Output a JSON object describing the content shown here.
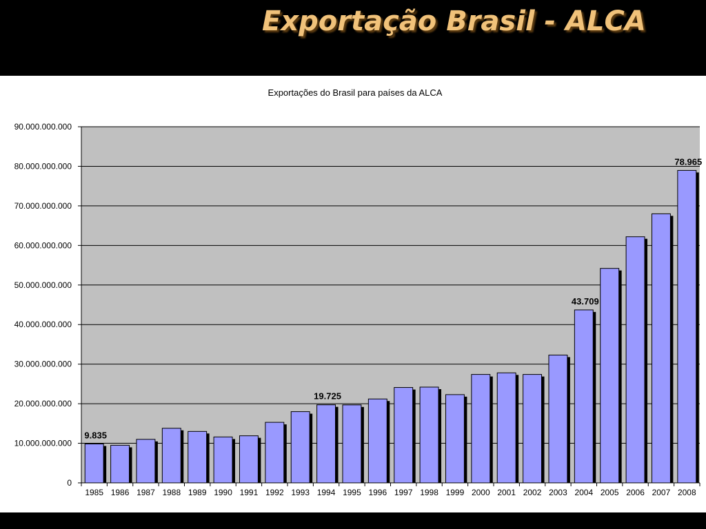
{
  "slide": {
    "title": "Exportação Brasil - ALCA"
  },
  "colors": {
    "background": "#000000",
    "title_text": "#f1c27a",
    "plot_area": "#c0c0c0",
    "bar_fill": "#9999ff",
    "bar_shadow": "#000000"
  },
  "chart_data": {
    "type": "bar",
    "title": "Exportações do Brasil para países da ALCA",
    "xlabel": "",
    "ylabel": "",
    "ylim": [
      0,
      90000000000
    ],
    "y_ticks": [
      0,
      10000000000,
      20000000000,
      30000000000,
      40000000000,
      50000000000,
      60000000000,
      70000000000,
      80000000000,
      90000000000
    ],
    "y_tick_labels": [
      "0",
      "10.000.000.000",
      "20.000.000.000",
      "30.000.000.000",
      "40.000.000.000",
      "50.000.000.000",
      "60.000.000.000",
      "70.000.000.000",
      "80.000.000.000",
      "90.000.000.000"
    ],
    "grid": true,
    "legend": "none",
    "categories": [
      "1985",
      "1986",
      "1987",
      "1988",
      "1989",
      "1990",
      "1991",
      "1992",
      "1993",
      "1994",
      "1995",
      "1996",
      "1997",
      "1998",
      "1999",
      "2000",
      "2001",
      "2002",
      "2003",
      "2004",
      "2005",
      "2006",
      "2007",
      "2008"
    ],
    "values": [
      9835000000,
      9500000000,
      11000000000,
      13800000000,
      13000000000,
      11600000000,
      11900000000,
      15300000000,
      18000000000,
      19725000000,
      19700000000,
      21200000000,
      24100000000,
      24200000000,
      22300000000,
      27400000000,
      27800000000,
      27400000000,
      32300000000,
      43709000000,
      54200000000,
      62200000000,
      68000000000,
      78965000000
    ],
    "data_labels": [
      {
        "category": "1985",
        "text": "9.835"
      },
      {
        "category": "1994",
        "text": "19.725"
      },
      {
        "category": "2004",
        "text": "43.709"
      },
      {
        "category": "2008",
        "text": "78.965"
      }
    ]
  }
}
